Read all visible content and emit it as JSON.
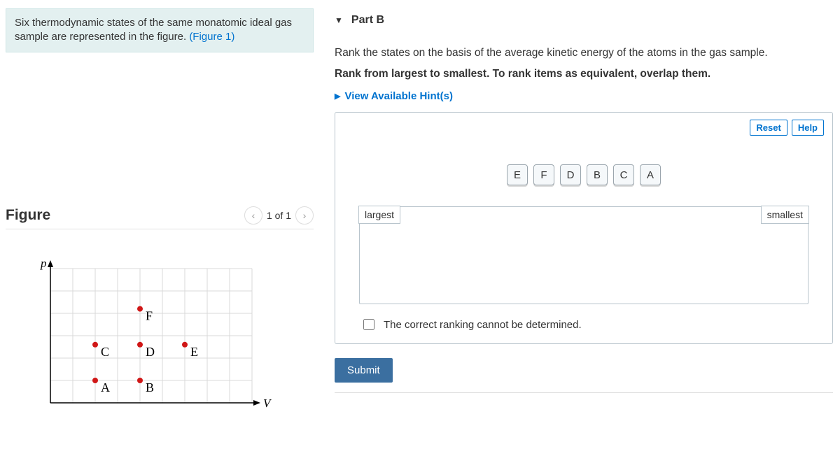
{
  "intro": {
    "text_prefix": "Six thermodynamic states of the same monatomic ideal gas sample are represented in the figure. ",
    "link_text": "(Figure 1)"
  },
  "figure": {
    "title": "Figure",
    "pager_text": "1 of 1",
    "axes": {
      "x_label": "V",
      "y_label": "p"
    },
    "grid": {
      "cols": 9,
      "rows": 6,
      "cell": 32,
      "color": "#d9d9d9"
    },
    "points": [
      {
        "label": "A",
        "col": 2,
        "row": 5,
        "color": "#d01717"
      },
      {
        "label": "B",
        "col": 4,
        "row": 5,
        "color": "#d01717"
      },
      {
        "label": "C",
        "col": 2,
        "row": 3.4,
        "color": "#d01717"
      },
      {
        "label": "D",
        "col": 4,
        "row": 3.4,
        "color": "#d01717"
      },
      {
        "label": "E",
        "col": 6,
        "row": 3.4,
        "color": "#d01717"
      },
      {
        "label": "F",
        "col": 4,
        "row": 1.8,
        "color": "#d01717"
      }
    ]
  },
  "part": {
    "label": "Part B",
    "prompt": "Rank the states on the basis of the average kinetic energy of the atoms in the gas sample.",
    "instruction": "Rank from largest to smallest. To rank items as equivalent, overlap them.",
    "hints_label": "View Available Hint(s)",
    "reset_label": "Reset",
    "help_label": "Help",
    "items": [
      "E",
      "F",
      "D",
      "B",
      "C",
      "A"
    ],
    "zone_left": "largest",
    "zone_right": "smallest",
    "cannot_label": "The correct ranking cannot be determined.",
    "submit_label": "Submit"
  }
}
